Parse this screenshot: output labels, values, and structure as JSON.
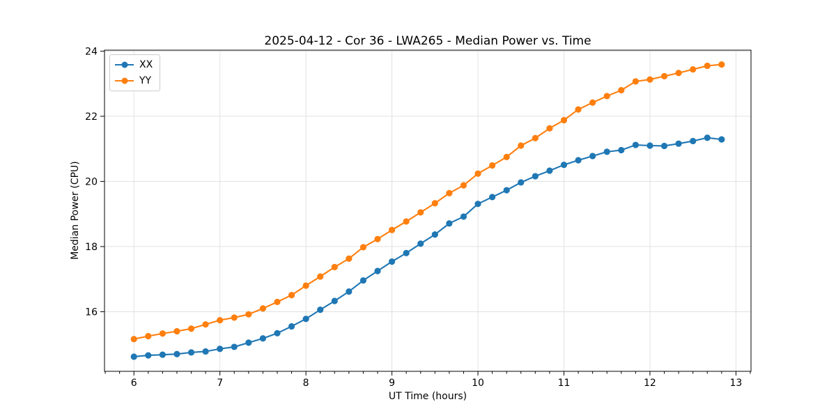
{
  "chart_data": {
    "type": "line",
    "title": "2025-04-12 - Cor 36 - LWA265 - Median Power vs. Time",
    "xlabel": "UT Time (hours)",
    "ylabel": "Median Power (CPU)",
    "grid": true,
    "legend_position": "upper left",
    "xlim": [
      5.658,
      13.175
    ],
    "ylim": [
      14.17,
      24.03
    ],
    "x_major_ticks": [
      6,
      7,
      8,
      9,
      10,
      11,
      12,
      13
    ],
    "x_tick_labels": [
      "6",
      "7",
      "8",
      "9",
      "10",
      "11",
      "12",
      "13"
    ],
    "x_minor_step": 0.166667,
    "y_major_ticks": [
      16,
      18,
      20,
      22,
      24
    ],
    "y_tick_labels": [
      "16",
      "18",
      "20",
      "22",
      "24"
    ],
    "x": [
      6.0,
      6.1667,
      6.3333,
      6.5,
      6.6667,
      6.8333,
      7.0,
      7.1667,
      7.3333,
      7.5,
      7.6667,
      7.8333,
      8.0,
      8.1667,
      8.3333,
      8.5,
      8.6667,
      8.8333,
      9.0,
      9.1667,
      9.3333,
      9.5,
      9.6667,
      9.8333,
      10.0,
      10.1667,
      10.3333,
      10.5,
      10.6667,
      10.8333,
      11.0,
      11.1667,
      11.3333,
      11.5,
      11.6667,
      11.8333,
      12.0,
      12.1667,
      12.3333,
      12.5,
      12.6667,
      12.8333
    ],
    "series": [
      {
        "name": "XX",
        "color": "#1f77b4",
        "values": [
          14.62,
          14.66,
          14.68,
          14.7,
          14.75,
          14.78,
          14.86,
          14.92,
          15.05,
          15.18,
          15.34,
          15.55,
          15.78,
          16.06,
          16.33,
          16.62,
          16.96,
          17.25,
          17.54,
          17.8,
          18.09,
          18.37,
          18.71,
          18.92,
          19.31,
          19.52,
          19.73,
          19.97,
          20.16,
          20.33,
          20.51,
          20.65,
          20.78,
          20.91,
          20.96,
          21.12,
          21.1,
          21.09,
          21.16,
          21.24,
          21.34,
          21.29
        ]
      },
      {
        "name": "YY",
        "color": "#ff7f0e",
        "values": [
          15.16,
          15.25,
          15.33,
          15.4,
          15.48,
          15.61,
          15.74,
          15.82,
          15.92,
          16.1,
          16.3,
          16.51,
          16.8,
          17.08,
          17.37,
          17.63,
          17.98,
          18.23,
          18.51,
          18.77,
          19.05,
          19.33,
          19.64,
          19.88,
          20.24,
          20.49,
          20.75,
          21.1,
          21.33,
          21.63,
          21.88,
          22.21,
          22.42,
          22.62,
          22.8,
          23.07,
          23.13,
          23.23,
          23.33,
          23.44,
          23.55,
          23.59
        ]
      }
    ]
  }
}
